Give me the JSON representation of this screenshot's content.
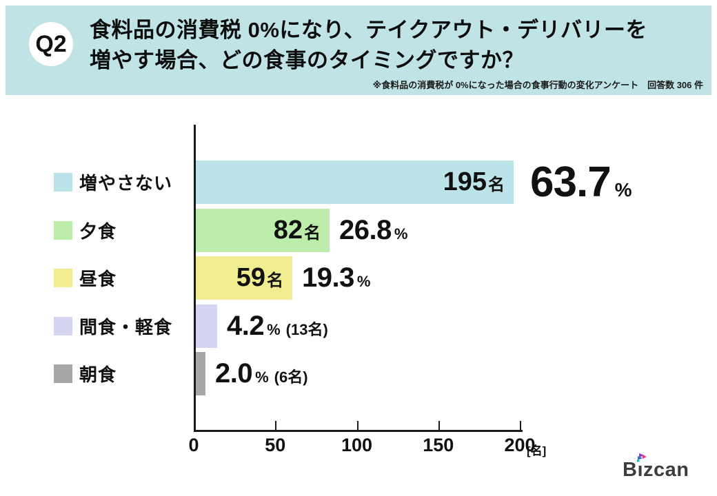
{
  "header": {
    "badge": "Q2",
    "title_line1": "食料品の消費税 0%になり、テイクアウト・デリバリーを",
    "title_line2": "増やす場合、どの食事のタイミングですか？",
    "note": "※食料品の消費税が 0%になった場合の食事行動の変化アンケート　回答数 306 件",
    "bg_color": "#c0e3e6"
  },
  "chart_data": {
    "type": "bar",
    "orientation": "horizontal",
    "title": "食料品の消費税 0%になり、テイクアウト・デリバリーを増やす場合、どの食事のタイミングですか？",
    "categories": [
      "増やさない",
      "夕食",
      "昼食",
      "間食・軽食",
      "朝食"
    ],
    "series": [
      {
        "name": "回答数（名）",
        "values": [
          195,
          82,
          59,
          13,
          6
        ]
      },
      {
        "name": "割合（%）",
        "values": [
          63.7,
          26.8,
          19.3,
          4.2,
          2.0
        ]
      }
    ],
    "xlabel": "[名]",
    "x_ticks": [
      0,
      50,
      100,
      150,
      200
    ],
    "xlim": [
      0,
      200
    ],
    "total_responses": 306,
    "bar_colors": [
      "#bce3e7",
      "#bcedaa",
      "#f0ec90",
      "#d5d5f2",
      "#a7a7a7"
    ],
    "legend_position": "left",
    "grid": false
  },
  "rows": [
    {
      "label": "増やさない",
      "value": 195,
      "count": "195",
      "count_unit": "名",
      "pct": "63.7",
      "pct_sign": "%",
      "extra": "",
      "color": "#bce3e7"
    },
    {
      "label": "夕食",
      "value": 82,
      "count": "82",
      "count_unit": "名",
      "pct": "26.8",
      "pct_sign": "%",
      "extra": "",
      "color": "#bcedaa"
    },
    {
      "label": "昼食",
      "value": 59,
      "count": "59",
      "count_unit": "名",
      "pct": "19.3",
      "pct_sign": "%",
      "extra": "",
      "color": "#f0ec90"
    },
    {
      "label": "間食・軽食",
      "value": 13,
      "count": "",
      "count_unit": "",
      "pct": "4.2",
      "pct_sign": "%",
      "extra": "(13名)",
      "color": "#d5d5f2"
    },
    {
      "label": "朝食",
      "value": 6,
      "count": "",
      "count_unit": "",
      "pct": "2.0",
      "pct_sign": "%",
      "extra": "(6名)",
      "color": "#a7a7a7"
    }
  ],
  "axis": {
    "tick_labels": [
      "0",
      "50",
      "100",
      "150",
      "200"
    ],
    "unit": "[名]",
    "max": 200
  },
  "logo": {
    "text": "Bizcan",
    "text_color": "#3d3d3d",
    "mark_colors": [
      "#1fb5b0",
      "#2f6fd6",
      "#8a3fd1",
      "#e0407a"
    ]
  }
}
